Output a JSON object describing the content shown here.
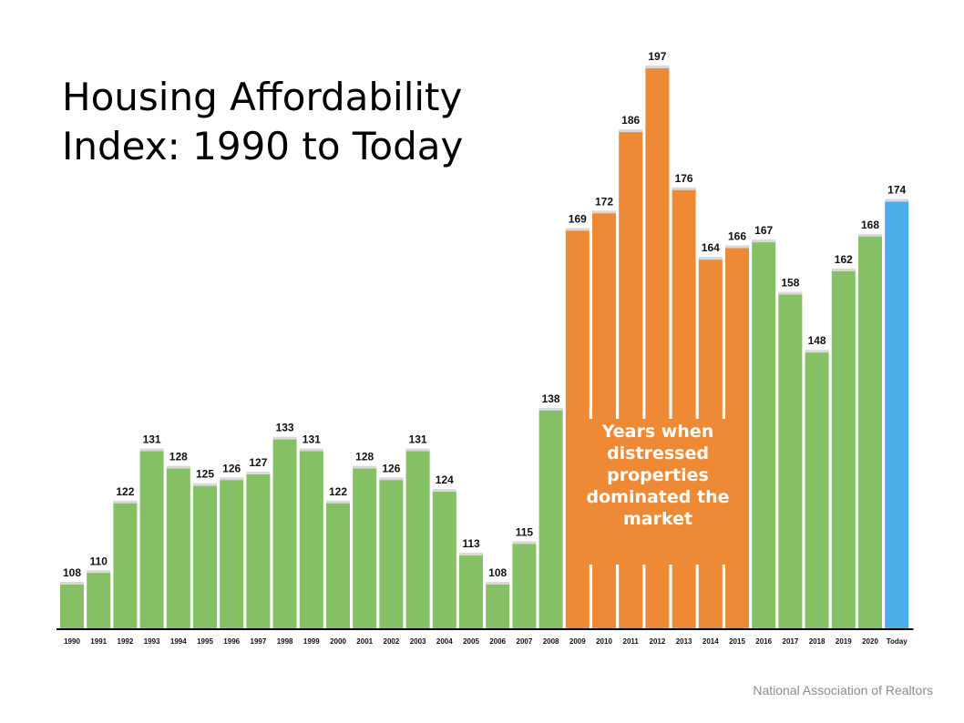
{
  "title_lines": [
    "Housing Affordability",
    "Index: 1990 to Today"
  ],
  "source": "National Association of Realtors",
  "annotation_lines": [
    "Years when",
    "distressed",
    "properties",
    "dominated the",
    "market"
  ],
  "colors": {
    "normal": "#86c064",
    "distressed": "#ee8a35",
    "today": "#4aaee8",
    "axis": "#000000"
  },
  "chart_data": {
    "type": "bar",
    "title": "Housing Affordability Index: 1990 to Today",
    "xlabel": "",
    "ylabel": "",
    "grid": false,
    "categories": [
      "1990",
      "1991",
      "1992",
      "1993",
      "1994",
      "1995",
      "1996",
      "1997",
      "1998",
      "1999",
      "2000",
      "2001",
      "2002",
      "2003",
      "2004",
      "2005",
      "2006",
      "2007",
      "2008",
      "2009",
      "2010",
      "2011",
      "2012",
      "2013",
      "2014",
      "2015",
      "2016",
      "2017",
      "2018",
      "2019",
      "2020",
      "Today"
    ],
    "values": [
      108,
      110,
      122,
      131,
      128,
      125,
      126,
      127,
      133,
      131,
      122,
      128,
      126,
      131,
      124,
      113,
      108,
      115,
      138,
      169,
      172,
      186,
      197,
      176,
      164,
      166,
      167,
      158,
      148,
      162,
      168,
      174
    ],
    "groups": [
      "normal",
      "normal",
      "normal",
      "normal",
      "normal",
      "normal",
      "normal",
      "normal",
      "normal",
      "normal",
      "normal",
      "normal",
      "normal",
      "normal",
      "normal",
      "normal",
      "normal",
      "normal",
      "normal",
      "distressed",
      "distressed",
      "distressed",
      "distressed",
      "distressed",
      "distressed",
      "distressed",
      "normal",
      "normal",
      "normal",
      "normal",
      "normal",
      "today"
    ],
    "annotation": "Years when distressed properties dominated the market"
  }
}
